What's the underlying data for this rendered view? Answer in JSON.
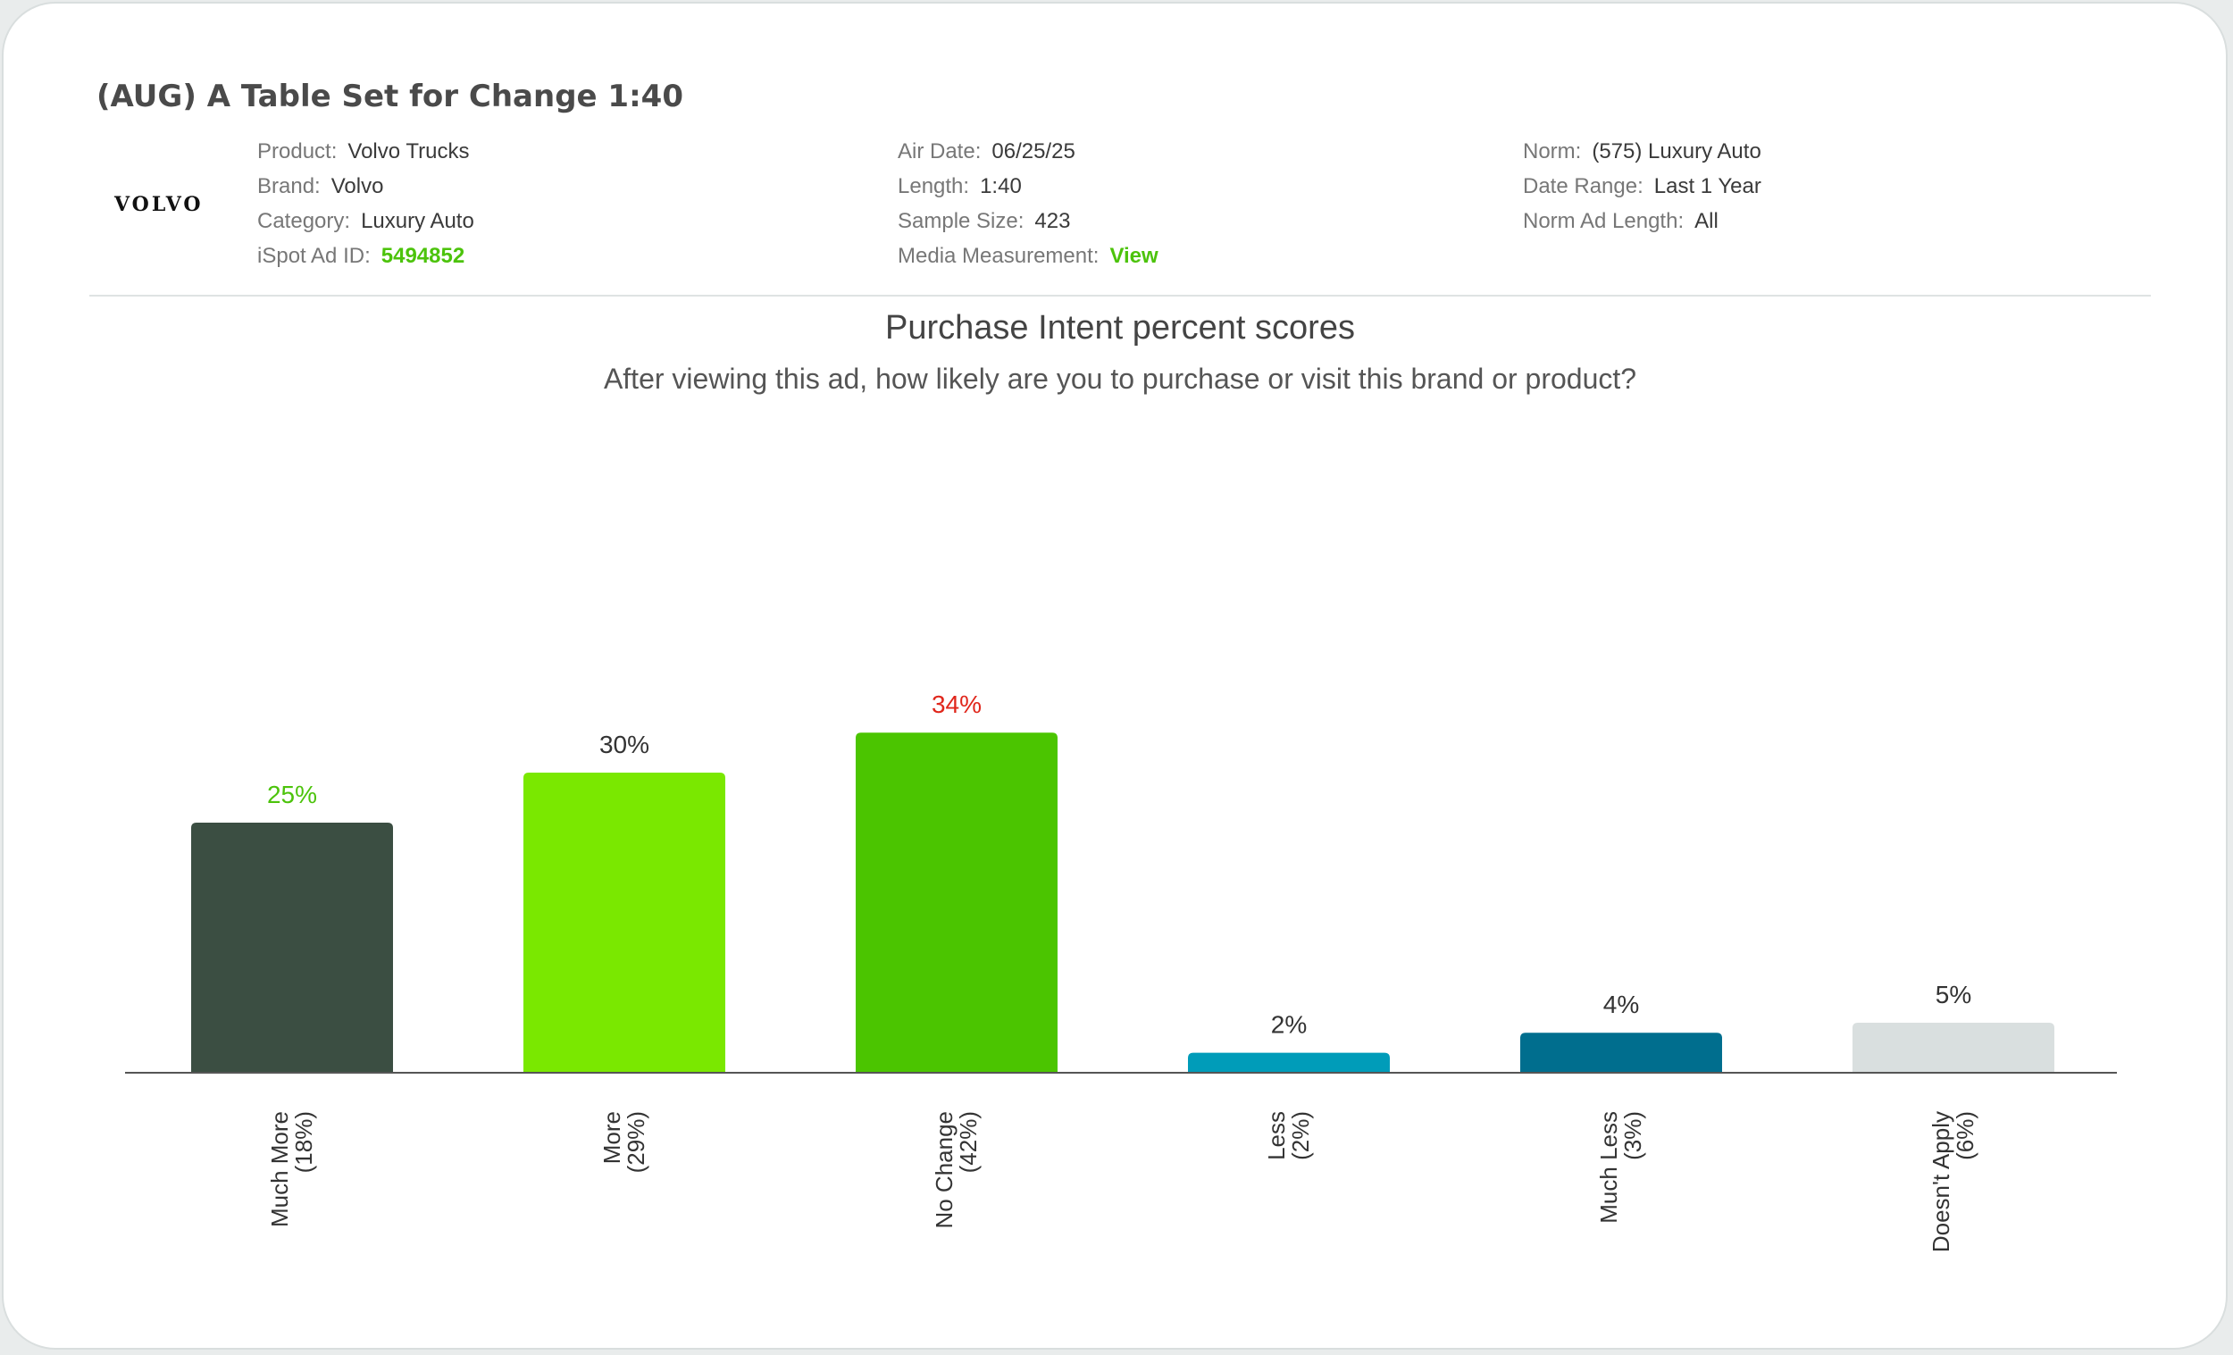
{
  "ad": {
    "title": "(AUG) A Table Set for Change 1:40",
    "logo_text": "VOLVO",
    "meta": [
      [
        {
          "label": "Product:",
          "value": "Volvo Trucks"
        },
        {
          "label": "Brand:",
          "value": "Volvo"
        },
        {
          "label": "Category:",
          "value": "Luxury Auto"
        },
        {
          "label": "iSpot Ad ID:",
          "value": "5494852",
          "link": true
        }
      ],
      [
        {
          "label": "Air Date:",
          "value": "06/25/25"
        },
        {
          "label": "Length:",
          "value": "1:40"
        },
        {
          "label": "Sample Size:",
          "value": "423"
        },
        {
          "label": "Media Measurement:",
          "value": "View",
          "link": true
        }
      ],
      [
        {
          "label": "Norm:",
          "value": "(575) Luxury Auto"
        },
        {
          "label": "Date Range:",
          "value": "Last 1 Year"
        },
        {
          "label": "Norm Ad Length:",
          "value": "All"
        }
      ]
    ]
  },
  "chart_data": {
    "type": "bar",
    "title": "Purchase Intent percent scores",
    "subtitle": "After viewing this ad, how likely are you to purchase or visit this brand or product?",
    "categories": [
      "Much More",
      "More",
      "No Change",
      "Less",
      "Much Less",
      "Doesn't Apply"
    ],
    "norm_labels": [
      "(18%)",
      "(29%)",
      "(42%)",
      "(2%)",
      "(3%)",
      "(6%)"
    ],
    "values": [
      25,
      30,
      34,
      2,
      4,
      5
    ],
    "value_labels": [
      "25%",
      "30%",
      "34%",
      "2%",
      "4%",
      "5%"
    ],
    "bar_colors": [
      "#3b4e42",
      "#7ae800",
      "#4bc500",
      "#009cb9",
      "#006e8e",
      "#d9dfdf"
    ],
    "label_colors": [
      "#4cc30b",
      "#333333",
      "#e0261b",
      "#333333",
      "#333333",
      "#333333"
    ],
    "ylim": [
      0,
      40
    ],
    "grid": false,
    "legend": "none"
  }
}
